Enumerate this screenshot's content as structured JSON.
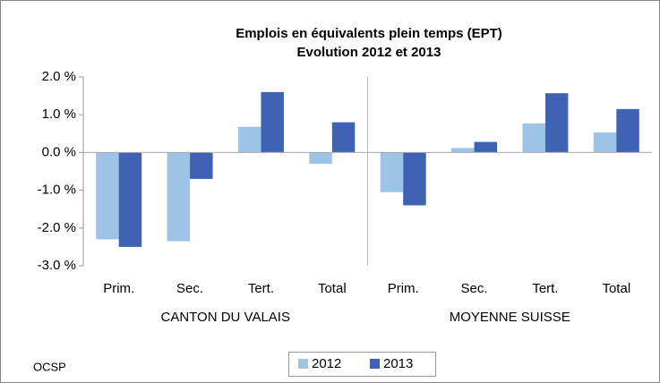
{
  "chart_data": {
    "type": "bar",
    "title": "Emplois en équivalents plein temps (EPT)",
    "subtitle": "Evolution 2012 et 2013",
    "categories": [
      "Prim.",
      "Sec.",
      "Tert.",
      "Total",
      "Prim.",
      "Sec.",
      "Tert.",
      "Total"
    ],
    "groups": [
      "CANTON DU VALAIS",
      "MOYENNE SUISSE"
    ],
    "series": [
      {
        "name": "2012",
        "color": "#9dc3e6",
        "values": [
          -2.3,
          -2.35,
          0.68,
          -0.3,
          -1.05,
          0.12,
          0.77,
          0.53
        ]
      },
      {
        "name": "2013",
        "color": "#4062b4",
        "values": [
          -2.5,
          -0.7,
          1.6,
          0.8,
          -1.4,
          0.28,
          1.57,
          1.15
        ]
      }
    ],
    "ylim": [
      -3,
      2
    ],
    "yticks": [
      {
        "value": -3,
        "label": "-3.0 %"
      },
      {
        "value": -2,
        "label": "-2.0 %"
      },
      {
        "value": -1,
        "label": "-1.0 %"
      },
      {
        "value": 0,
        "label": "0.0 %"
      },
      {
        "value": 1,
        "label": "1.0 %"
      },
      {
        "value": 2,
        "label": "2.0 %"
      }
    ],
    "source": "OCSP",
    "legend": "bottom"
  }
}
